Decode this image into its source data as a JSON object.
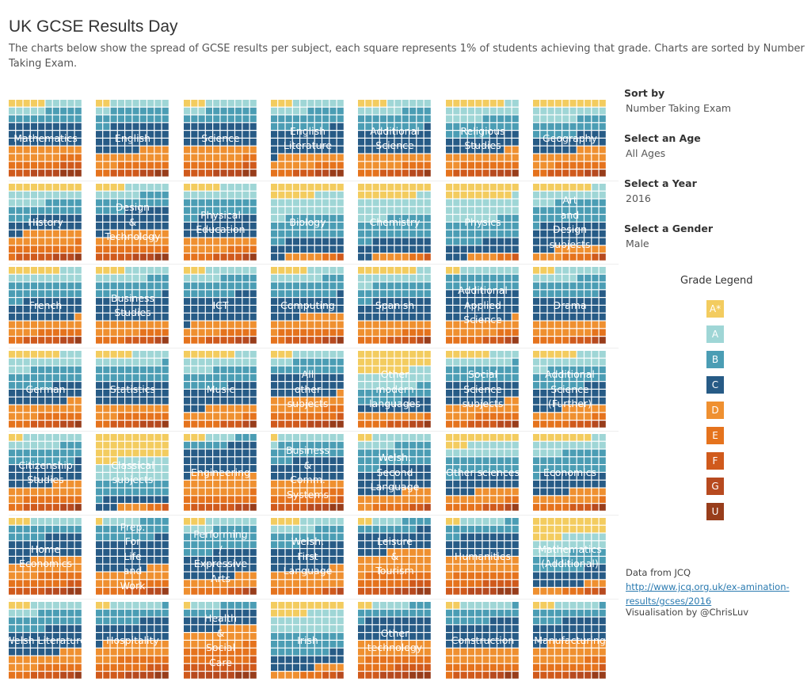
{
  "title": "UK GCSE Results Day",
  "subtitle": "The charts below show the spread of GCSE results per subject, each square represents 1% of students achieving that grade. Charts are sorted by Number Taking Exam.",
  "controls": [
    {
      "label": "Sort by",
      "value": "Number Taking Exam"
    },
    {
      "label": "Select an Age",
      "value": "All Ages"
    },
    {
      "label": "Select a Year",
      "value": "2016"
    },
    {
      "label": "Select a Gender",
      "value": "Male"
    }
  ],
  "legend": {
    "title": "Grade Legend",
    "items": [
      {
        "grade": "A*",
        "color": "#f3cc5f"
      },
      {
        "grade": "A",
        "color": "#9fd6d6"
      },
      {
        "grade": "B",
        "color": "#4b9db4"
      },
      {
        "grade": "C",
        "color": "#275b86"
      },
      {
        "grade": "D",
        "color": "#ef9030"
      },
      {
        "grade": "E",
        "color": "#e5731d"
      },
      {
        "grade": "F",
        "color": "#d05a1c"
      },
      {
        "grade": "G",
        "color": "#b74a1f"
      },
      {
        "grade": "U",
        "color": "#983d1b"
      }
    ]
  },
  "source": {
    "prefix": "Data from JCQ ",
    "url": "http://www.jcq.org.uk/ex-amination-results/gcses/2016"
  },
  "credit": "Visualisation by @ChrisLuv",
  "chart_data": {
    "type": "waffle",
    "unit": "% of students",
    "grades": [
      "A*",
      "A",
      "B",
      "C",
      "D",
      "E",
      "F",
      "G",
      "U"
    ],
    "subjects": [
      {
        "name": "Mathematics",
        "values": [
          5,
          10,
          15,
          30,
          17,
          10,
          6,
          4,
          3
        ]
      },
      {
        "name": "English",
        "values": [
          2,
          10,
          20,
          34,
          17,
          9,
          4,
          2,
          2
        ]
      },
      {
        "name": "Science",
        "values": [
          3,
          10,
          17,
          30,
          18,
          10,
          6,
          4,
          2
        ]
      },
      {
        "name": "English Literature",
        "values": [
          3,
          12,
          23,
          33,
          15,
          7,
          3,
          2,
          2
        ]
      },
      {
        "name": "Additional Science",
        "values": [
          4,
          12,
          23,
          31,
          16,
          7,
          4,
          2,
          1
        ]
      },
      {
        "name": "Religious Studies",
        "values": [
          8,
          17,
          21,
          22,
          14,
          9,
          5,
          3,
          1
        ]
      },
      {
        "name": "Geography",
        "values": [
          10,
          16,
          20,
          20,
          17,
          9,
          5,
          2,
          1
        ]
      },
      {
        "name": "History",
        "values": [
          10,
          15,
          18,
          19,
          17,
          12,
          5,
          3,
          1
        ]
      },
      {
        "name": "Design & Technology",
        "values": [
          4,
          12,
          18,
          28,
          18,
          10,
          5,
          3,
          2
        ]
      },
      {
        "name": "Physical Education",
        "values": [
          5,
          15,
          22,
          28,
          16,
          8,
          4,
          1,
          1
        ]
      },
      {
        "name": "Biology",
        "values": [
          16,
          26,
          30,
          20,
          5,
          2,
          1,
          0,
          0
        ]
      },
      {
        "name": "Chemistry",
        "values": [
          18,
          26,
          28,
          20,
          5,
          2,
          1,
          0,
          0
        ]
      },
      {
        "name": "Physics",
        "values": [
          19,
          28,
          28,
          18,
          4,
          2,
          1,
          0,
          0
        ]
      },
      {
        "name": "Art and Design subjects",
        "values": [
          8,
          15,
          28,
          32,
          11,
          4,
          1,
          1,
          0
        ]
      },
      {
        "name": "French",
        "values": [
          7,
          13,
          22,
          27,
          15,
          8,
          5,
          2,
          1
        ]
      },
      {
        "name": "Business Studies",
        "values": [
          4,
          13,
          22,
          31,
          16,
          8,
          4,
          1,
          1
        ]
      },
      {
        "name": "ICT",
        "values": [
          3,
          12,
          22,
          34,
          14,
          8,
          4,
          2,
          1
        ]
      },
      {
        "name": "Computing",
        "values": [
          5,
          12,
          22,
          25,
          17,
          11,
          5,
          2,
          1
        ]
      },
      {
        "name": "Spanish",
        "values": [
          8,
          14,
          20,
          28,
          16,
          8,
          4,
          1,
          1
        ]
      },
      {
        "name": "Additional Applied Science",
        "values": [
          2,
          8,
          20,
          39,
          18,
          8,
          3,
          1,
          1
        ]
      },
      {
        "name": "Drama",
        "values": [
          3,
          13,
          23,
          31,
          18,
          7,
          3,
          1,
          1
        ]
      },
      {
        "name": "German",
        "values": [
          7,
          16,
          23,
          22,
          16,
          9,
          4,
          2,
          1
        ]
      },
      {
        "name": "Statistics",
        "values": [
          5,
          14,
          21,
          30,
          13,
          9,
          4,
          3,
          1
        ]
      },
      {
        "name": "Music",
        "values": [
          7,
          17,
          22,
          27,
          15,
          7,
          3,
          1,
          1
        ]
      },
      {
        "name": "All other subjects",
        "values": [
          3,
          10,
          17,
          29,
          18,
          12,
          6,
          3,
          2
        ]
      },
      {
        "name": "Other modern languages",
        "values": [
          27,
          21,
          18,
          14,
          9,
          5,
          3,
          2,
          1
        ]
      },
      {
        "name": "Social Science subjects",
        "values": [
          6,
          13,
          21,
          28,
          16,
          9,
          4,
          2,
          1
        ]
      },
      {
        "name": "Additional Science (Further)",
        "values": [
          6,
          16,
          25,
          27,
          14,
          7,
          3,
          1,
          1
        ]
      },
      {
        "name": "Citizenship Studies",
        "values": [
          2,
          15,
          22,
          27,
          16,
          10,
          5,
          2,
          1
        ]
      },
      {
        "name": "Classical subjects",
        "values": [
          33,
          27,
          21,
          12,
          4,
          2,
          1,
          0,
          0
        ]
      },
      {
        "name": "Engineering",
        "values": [
          3,
          4,
          9,
          35,
          28,
          12,
          6,
          2,
          1
        ]
      },
      {
        "name": "Business & Comm. Systems",
        "values": [
          1,
          10,
          22,
          27,
          17,
          12,
          6,
          3,
          2
        ]
      },
      {
        "name": "Welsh: Second Language",
        "values": [
          2,
          13,
          28,
          33,
          16,
          5,
          2,
          1,
          0
        ]
      },
      {
        "name": "Other sciences",
        "values": [
          13,
          17,
          22,
          22,
          14,
          7,
          3,
          1,
          1
        ]
      },
      {
        "name": "Economics",
        "values": [
          8,
          16,
          27,
          24,
          14,
          6,
          3,
          1,
          1
        ]
      },
      {
        "name": "Home Economics",
        "values": [
          3,
          7,
          15,
          28,
          21,
          14,
          7,
          3,
          2
        ]
      },
      {
        "name": "Prep. For Life and Work",
        "values": [
          1,
          5,
          22,
          39,
          19,
          8,
          3,
          2,
          1
        ]
      },
      {
        "name": "Performing / Expressive Arts",
        "values": [
          3,
          11,
          30,
          33,
          14,
          5,
          2,
          1,
          1
        ]
      },
      {
        "name": "Welsh: First Language",
        "values": [
          4,
          12,
          18,
          34,
          22,
          7,
          2,
          1,
          0
        ]
      },
      {
        "name": "Leisure & Tourism",
        "values": [
          2,
          4,
          12,
          26,
          27,
          16,
          8,
          3,
          2
        ]
      },
      {
        "name": "Humanities",
        "values": [
          2,
          6,
          14,
          28,
          21,
          14,
          8,
          4,
          3
        ]
      },
      {
        "name": "Mathematics (Additional)",
        "values": [
          24,
          21,
          22,
          20,
          7,
          3,
          2,
          1,
          0
        ]
      },
      {
        "name": "Welsh Literature",
        "values": [
          3,
          11,
          21,
          32,
          17,
          9,
          4,
          2,
          1
        ]
      },
      {
        "name": "Hospitality",
        "values": [
          2,
          7,
          17,
          25,
          22,
          14,
          7,
          4,
          2
        ]
      },
      {
        "name": "Health & Social Care",
        "values": [
          1,
          4,
          10,
          20,
          23,
          21,
          12,
          6,
          3
        ]
      },
      {
        "name": "Irish",
        "values": [
          15,
          25,
          28,
          18,
          8,
          3,
          2,
          1,
          0
        ]
      },
      {
        "name": "Other technology",
        "values": [
          2,
          5,
          14,
          29,
          21,
          14,
          8,
          4,
          3
        ]
      },
      {
        "name": "Construction",
        "values": [
          2,
          7,
          17,
          34,
          20,
          11,
          5,
          2,
          2
        ]
      },
      {
        "name": "Manufacturing",
        "values": [
          3,
          6,
          15,
          28,
          25,
          12,
          6,
          3,
          2
        ]
      }
    ]
  }
}
